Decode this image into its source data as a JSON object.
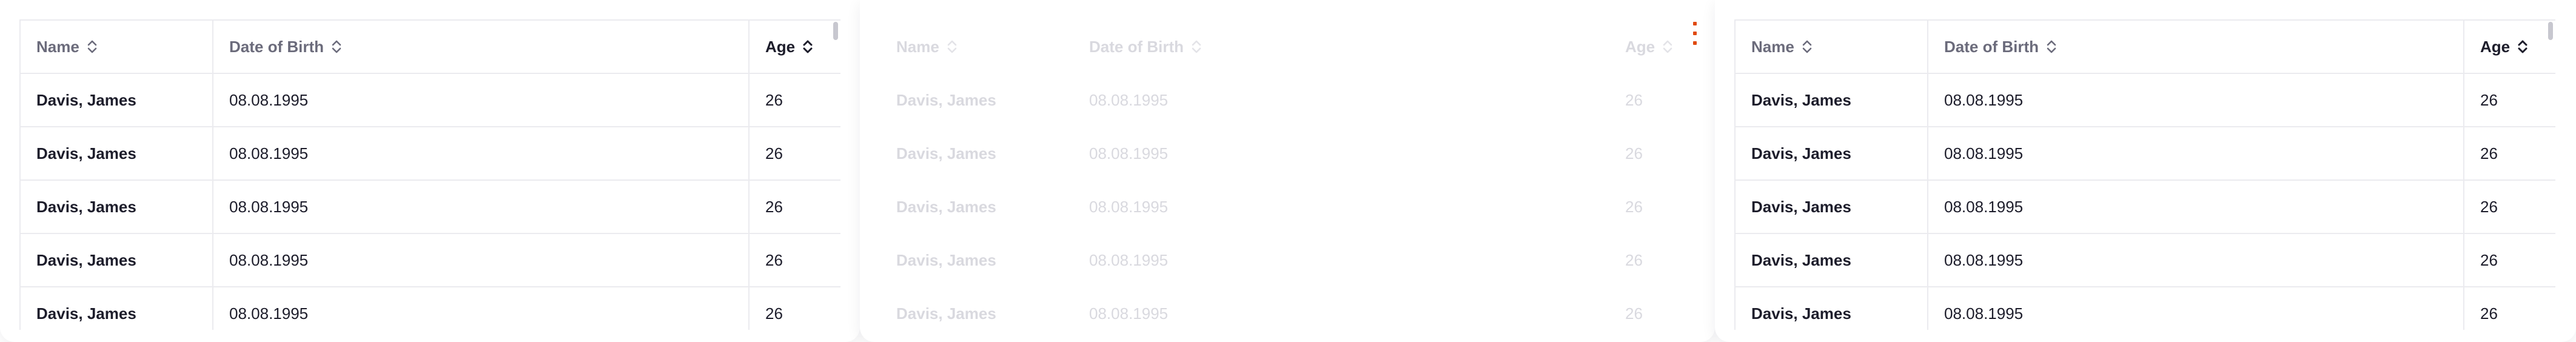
{
  "columns": {
    "name": "Name",
    "dob": "Date of Birth",
    "age": "Age"
  },
  "rows": [
    {
      "name": "Davis, James",
      "dob": "08.08.1995",
      "age": "26"
    },
    {
      "name": "Davis, James",
      "dob": "08.08.1995",
      "age": "26"
    },
    {
      "name": "Davis, James",
      "dob": "08.08.1995",
      "age": "26"
    },
    {
      "name": "Davis, James",
      "dob": "08.08.1995",
      "age": "26"
    },
    {
      "name": "Davis, James",
      "dob": "08.08.1995",
      "age": "26"
    }
  ],
  "icons": {
    "sort": "sort-chevrons-icon",
    "menu": "more-vertical-icon"
  },
  "colors": {
    "accent": "#e04a10",
    "border": "#ebebef",
    "text": "#1d1d2b",
    "muted": "#6b6b7b",
    "disabled": "#d9d9df"
  }
}
